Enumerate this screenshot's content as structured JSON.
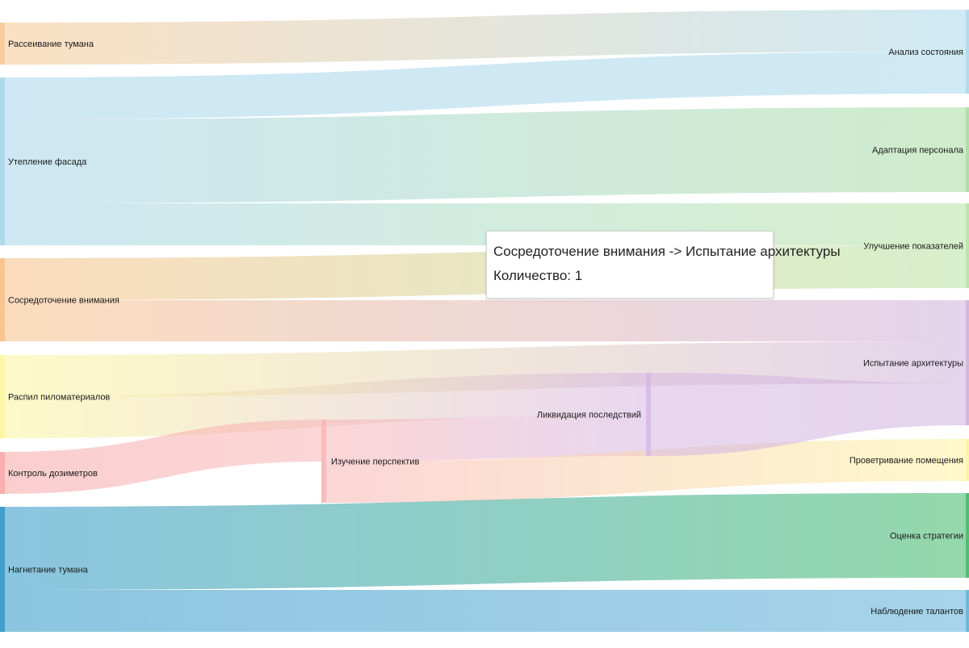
{
  "chart_data": {
    "type": "sankey",
    "nodes": [
      {
        "id": "n0",
        "name": "Рассеивание тумана",
        "color": "#f7c68f"
      },
      {
        "id": "n1",
        "name": "Утепление фасада",
        "color": "#a6d4ea"
      },
      {
        "id": "n2",
        "name": "Сосредоточение внимания",
        "color": "#f7bf86"
      },
      {
        "id": "n3",
        "name": "Распил пиломатериалов",
        "color": "#fdf59a"
      },
      {
        "id": "n4",
        "name": "Контроль дозиметров",
        "color": "#f8a6a6"
      },
      {
        "id": "n5",
        "name": "Нагнетание тумана",
        "color": "#2c95c7"
      },
      {
        "id": "n6",
        "name": "Изучение перспектив",
        "color": "#f8b4b4"
      },
      {
        "id": "n7",
        "name": "Ликвидация последствий",
        "color": "#d6b6e2"
      },
      {
        "id": "n8",
        "name": "Анализ состояния",
        "color": "#a8d8ea"
      },
      {
        "id": "n9",
        "name": "Адаптация персонала",
        "color": "#a8dca0"
      },
      {
        "id": "n10",
        "name": "Улучшение показателей",
        "color": "#b5e3a0"
      },
      {
        "id": "n11",
        "name": "Испытание архитектуры",
        "color": "#cdb0dc"
      },
      {
        "id": "n12",
        "name": "Проветривание помещения",
        "color": "#fdf3a0"
      },
      {
        "id": "n13",
        "name": "Оценка стратегии",
        "color": "#3cb865"
      },
      {
        "id": "n14",
        "name": "Наблюдение талантов",
        "color": "#5fb0d8"
      }
    ],
    "links": [
      {
        "source": "n0",
        "target": "n8",
        "value": 1
      },
      {
        "source": "n1",
        "target": "n8",
        "value": 1
      },
      {
        "source": "n1",
        "target": "n9",
        "value": 2
      },
      {
        "source": "n1",
        "target": "n10",
        "value": 1
      },
      {
        "source": "n2",
        "target": "n10",
        "value": 1
      },
      {
        "source": "n2",
        "target": "n11",
        "value": 1
      },
      {
        "source": "n3",
        "target": "n11",
        "value": 1
      },
      {
        "source": "n3",
        "target": "n7",
        "value": 1
      },
      {
        "source": "n4",
        "target": "n6",
        "value": 1
      },
      {
        "source": "n6",
        "target": "n7",
        "value": 1
      },
      {
        "source": "n6",
        "target": "n12",
        "value": 1
      },
      {
        "source": "n7",
        "target": "n11",
        "value": 2
      },
      {
        "source": "n5",
        "target": "n13",
        "value": 2
      },
      {
        "source": "n5",
        "target": "n14",
        "value": 1
      }
    ]
  },
  "tooltip": {
    "line1": "Сосредоточение внимания -> Испытание архитектуры",
    "line2": "Количество: 1"
  }
}
